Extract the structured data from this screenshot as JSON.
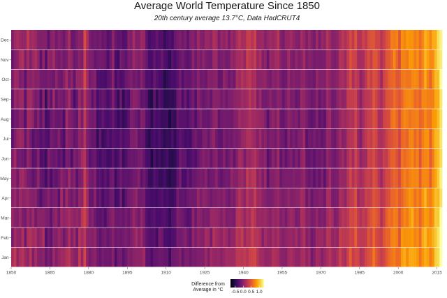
{
  "chart_data": {
    "type": "heatmap",
    "title": "Average World Temperature Since 1850",
    "subtitle": "20th century average 13.7°C, Data HadCRUT4",
    "xlabel": "",
    "ylabel": "",
    "x_range": [
      1850,
      2016
    ],
    "x_ticks": [
      1850,
      1865,
      1880,
      1895,
      1910,
      1925,
      1940,
      1955,
      1970,
      1985,
      2000,
      2015
    ],
    "y_categories": [
      "Jan",
      "Feb",
      "Mar",
      "Apr",
      "May",
      "Jun",
      "Jul",
      "Aug",
      "Sep",
      "Oct",
      "Nov",
      "Dec"
    ],
    "colorscale": {
      "name": "inferno",
      "min": -0.8,
      "max": 1.3,
      "stops": [
        "#000004",
        "#1b0c41",
        "#4a0c6b",
        "#781c6d",
        "#a52c60",
        "#cf4446",
        "#ed6925",
        "#fb9b06",
        "#f7d13d",
        "#fcffa4"
      ]
    },
    "legend": {
      "title_lines": [
        "Difference from",
        "Average in °C"
      ],
      "tick_labels": [
        "-0.5",
        "0.0",
        "0.5",
        "1.0"
      ],
      "tick_values": [
        -0.5,
        0.0,
        0.5,
        1.0
      ],
      "position": "bottom"
    },
    "annual_anomalies": [
      {
        "year": 1850,
        "value": -0.05
      },
      {
        "year": 1852,
        "value": -0.02
      },
      {
        "year": 1855,
        "value": -0.06
      },
      {
        "year": 1859,
        "value": -0.05
      },
      {
        "year": 1862,
        "value": -0.16
      },
      {
        "year": 1864,
        "value": -0.25
      },
      {
        "year": 1866,
        "value": -0.08
      },
      {
        "year": 1868,
        "value": -0.05
      },
      {
        "year": 1870,
        "value": -0.05
      },
      {
        "year": 1875,
        "value": -0.1
      },
      {
        "year": 1877,
        "value": 0.08
      },
      {
        "year": 1878,
        "value": 0.2
      },
      {
        "year": 1880,
        "value": -0.1
      },
      {
        "year": 1883,
        "value": -0.2
      },
      {
        "year": 1885,
        "value": -0.22
      },
      {
        "year": 1887,
        "value": -0.25
      },
      {
        "year": 1889,
        "value": -0.06
      },
      {
        "year": 1890,
        "value": -0.25
      },
      {
        "year": 1893,
        "value": -0.3
      },
      {
        "year": 1896,
        "value": -0.1
      },
      {
        "year": 1900,
        "value": -0.08
      },
      {
        "year": 1904,
        "value": -0.35
      },
      {
        "year": 1907,
        "value": -0.36
      },
      {
        "year": 1909,
        "value": -0.38
      },
      {
        "year": 1911,
        "value": -0.38
      },
      {
        "year": 1915,
        "value": -0.12
      },
      {
        "year": 1917,
        "value": -0.3
      },
      {
        "year": 1920,
        "value": -0.17
      },
      {
        "year": 1926,
        "value": -0.07
      },
      {
        "year": 1930,
        "value": -0.04
      },
      {
        "year": 1936,
        "value": -0.06
      },
      {
        "year": 1938,
        "value": 0.05
      },
      {
        "year": 1940,
        "value": 0.1
      },
      {
        "year": 1942,
        "value": 0.12
      },
      {
        "year": 1944,
        "value": 0.22
      },
      {
        "year": 1946,
        "value": 0.0
      },
      {
        "year": 1949,
        "value": -0.1
      },
      {
        "year": 1951,
        "value": -0.05
      },
      {
        "year": 1953,
        "value": 0.02
      },
      {
        "year": 1956,
        "value": -0.17
      },
      {
        "year": 1958,
        "value": 0.03
      },
      {
        "year": 1960,
        "value": -0.02
      },
      {
        "year": 1963,
        "value": 0.02
      },
      {
        "year": 1965,
        "value": -0.12
      },
      {
        "year": 1968,
        "value": -0.05
      },
      {
        "year": 1971,
        "value": -0.08
      },
      {
        "year": 1973,
        "value": 0.1
      },
      {
        "year": 1976,
        "value": -0.1
      },
      {
        "year": 1977,
        "value": 0.13
      },
      {
        "year": 1979,
        "value": 0.16
      },
      {
        "year": 1981,
        "value": 0.25
      },
      {
        "year": 1983,
        "value": 0.3
      },
      {
        "year": 1985,
        "value": 0.12
      },
      {
        "year": 1987,
        "value": 0.32
      },
      {
        "year": 1988,
        "value": 0.35
      },
      {
        "year": 1990,
        "value": 0.43
      },
      {
        "year": 1992,
        "value": 0.2
      },
      {
        "year": 1994,
        "value": 0.31
      },
      {
        "year": 1995,
        "value": 0.45
      },
      {
        "year": 1997,
        "value": 0.53
      },
      {
        "year": 1998,
        "value": 0.72
      },
      {
        "year": 1999,
        "value": 0.5
      },
      {
        "year": 2000,
        "value": 0.5
      },
      {
        "year": 2002,
        "value": 0.7
      },
      {
        "year": 2005,
        "value": 0.75
      },
      {
        "year": 2008,
        "value": 0.6
      },
      {
        "year": 2010,
        "value": 0.8
      },
      {
        "year": 2012,
        "value": 0.72
      },
      {
        "year": 2014,
        "value": 0.85
      },
      {
        "year": 2015,
        "value": 1.05
      },
      {
        "year": 2016,
        "value": 1.15
      }
    ],
    "monthly_offsets": [
      0.12,
      0.1,
      0.06,
      0.02,
      -0.02,
      -0.05,
      -0.05,
      -0.04,
      -0.03,
      0.0,
      0.04,
      0.08
    ]
  }
}
